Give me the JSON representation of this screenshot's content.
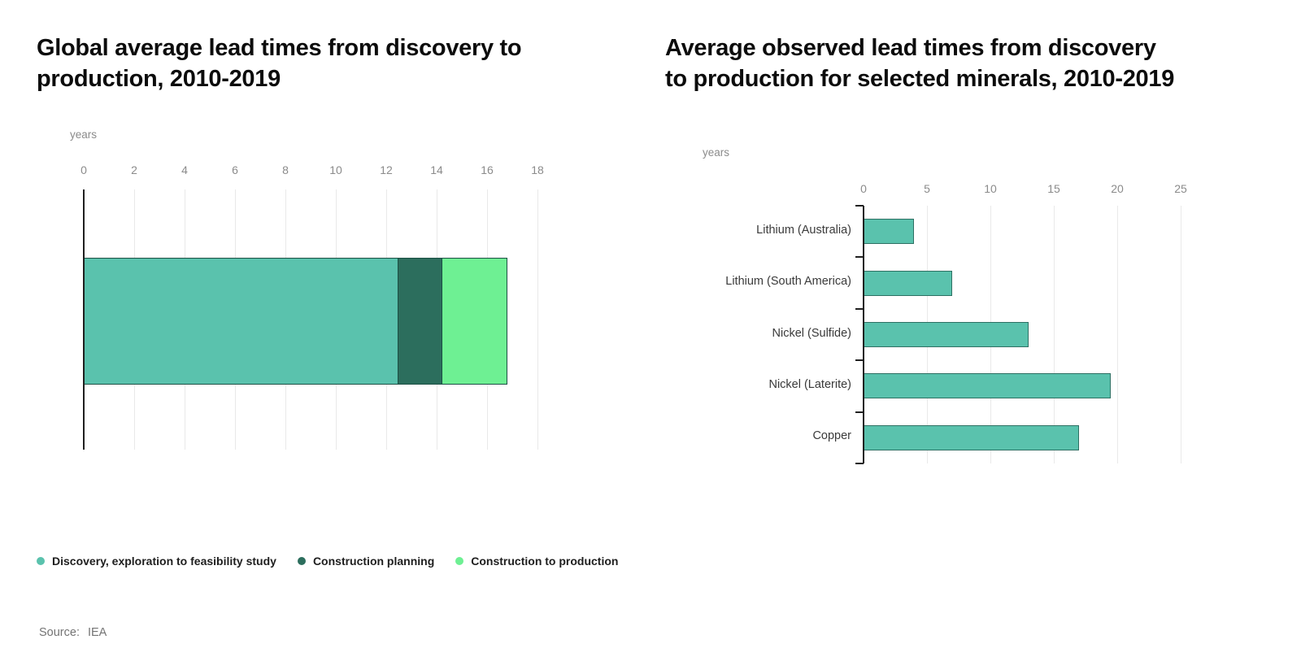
{
  "page": {
    "background": "#ffffff",
    "source_label": "Source:",
    "source_value": "IEA"
  },
  "legend": {
    "items": [
      {
        "label": "Discovery, exploration to feasibility study",
        "color": "#5ac2ad"
      },
      {
        "label": "Construction planning",
        "color": "#2c6e5d"
      },
      {
        "label": "Construction to production",
        "color": "#6ef093"
      }
    ]
  },
  "chart_data": [
    {
      "type": "bar",
      "subtype": "stacked-horizontal",
      "title": "Global average lead times from discovery to production, 2010-2019",
      "title_lines": [
        "Global average lead times from discovery to",
        "production, 2010-2019"
      ],
      "unit_label": "years",
      "xlim": [
        0,
        18
      ],
      "x_ticks": [
        0,
        2,
        4,
        6,
        8,
        10,
        12,
        14,
        16,
        18
      ],
      "grid": true,
      "legend_position": "bottom",
      "series": [
        {
          "name": "Discovery, exploration to feasibility study",
          "value": 12.5,
          "color": "#5ac2ad"
        },
        {
          "name": "Construction planning",
          "value": 1.8,
          "color": "#2c6e5d"
        },
        {
          "name": "Construction to production",
          "value": 2.6,
          "color": "#6ef093"
        }
      ],
      "total_years": 16.9
    },
    {
      "type": "bar",
      "subtype": "horizontal",
      "title": "Average observed lead times from discovery to production for selected minerals, 2010-2019",
      "title_lines": [
        "Average observed lead times from discovery",
        "to production for selected minerals, 2010-2019"
      ],
      "unit_label": "years",
      "xlim": [
        0,
        25
      ],
      "x_ticks": [
        0,
        5,
        10,
        15,
        20,
        25
      ],
      "grid": true,
      "categories": [
        "Lithium (Australia)",
        "Lithium (South America)",
        "Nickel (Sulfide)",
        "Nickel (Laterite)",
        "Copper"
      ],
      "values": [
        4,
        7,
        13,
        19.5,
        17
      ],
      "bar_color": "#5ac2ad",
      "bar_border_color": "#2e7063"
    }
  ]
}
